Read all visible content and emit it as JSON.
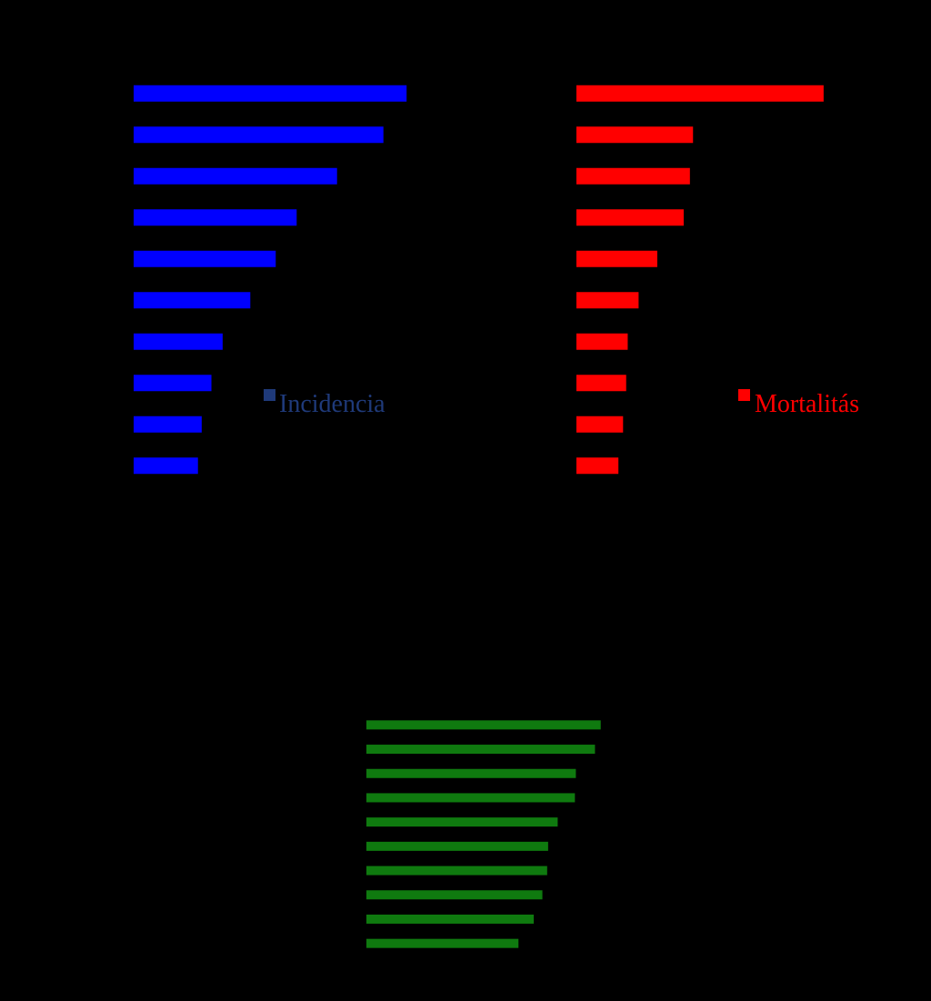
{
  "background": "#000000",
  "chart_data": [
    {
      "type": "bar",
      "orientation": "horizontal",
      "color": "#0000ff",
      "legend_swatch_color": "#1f3a7a",
      "legend_text_color": "#1f3a7a",
      "legend": "Incidencia",
      "legend_position": "lower-right",
      "categories": [
        "",
        "",
        "",
        "",
        "",
        "",
        "",
        "",
        "",
        ""
      ],
      "values": [
        36.5,
        33.4,
        27.2,
        21.8,
        19.0,
        15.6,
        11.9,
        10.4,
        9.1,
        8.6
      ],
      "xlim": [
        0,
        40
      ],
      "x_ticks": [
        0,
        10,
        20,
        30,
        40
      ],
      "grid": false
    },
    {
      "type": "bar",
      "orientation": "horizontal",
      "color": "#ff0000",
      "legend_swatch_color": "#ff0000",
      "legend_text_color": "#ff0000",
      "legend": "Mortalitás",
      "legend_position": "lower-right",
      "categories": [
        "",
        "",
        "",
        "",
        "",
        "",
        "",
        "",
        "",
        ""
      ],
      "values": [
        15.9,
        7.5,
        7.3,
        6.9,
        5.2,
        4.0,
        3.3,
        3.2,
        3.0,
        2.7
      ],
      "xlim": [
        0,
        20
      ],
      "x_ticks": [
        0,
        5,
        10,
        15,
        20
      ],
      "grid": false
    },
    {
      "type": "bar",
      "orientation": "horizontal",
      "color": "#0f7a0f",
      "legend": "",
      "categories": [
        "",
        "",
        "",
        "",
        "",
        "",
        "",
        "",
        "",
        ""
      ],
      "values": [
        24.5,
        23.9,
        21.9,
        21.8,
        20.0,
        19.0,
        18.9,
        18.4,
        17.5,
        15.9
      ],
      "xlim": [
        0,
        25
      ],
      "x_ticks": [
        0,
        5,
        10,
        15,
        20,
        25
      ],
      "grid": false
    }
  ]
}
